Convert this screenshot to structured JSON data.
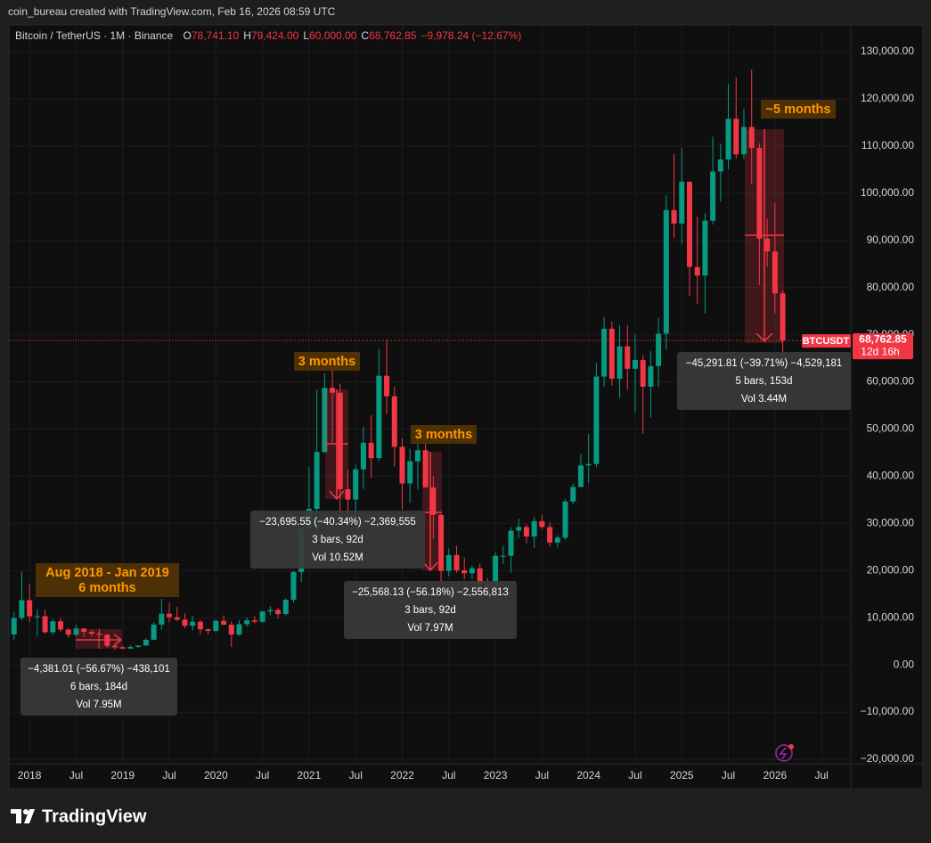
{
  "header": {
    "credit": "coin_bureau created with TradingView.com, Feb 16, 2026 08:59 UTC"
  },
  "footer": {
    "brand": "TradingView"
  },
  "chart_data": {
    "type": "candlestick",
    "symbol": "Bitcoin / TetherUS · 1M · Binance",
    "ohlc_legend": [
      {
        "key": "O",
        "value": "78,741.10"
      },
      {
        "key": "H",
        "value": "79,424.00"
      },
      {
        "key": "L",
        "value": "60,000.00"
      },
      {
        "key": "C",
        "value": "68,762.85"
      }
    ],
    "change": "−9,978.24 (−12.67%)",
    "price_tag": {
      "symbol": "BTCUSDT",
      "price": "68,762.85",
      "countdown": "12d 16h"
    },
    "up_color": "#089981",
    "down_color": "#f23645",
    "grid": true,
    "xlim": [
      "2017-10",
      "2026-11"
    ],
    "ylim": [
      -20945,
      135290
    ],
    "xticks": [
      {
        "value": "2018-01",
        "label": "2018"
      },
      {
        "value": "2018-07",
        "label": "Jul"
      },
      {
        "value": "2019-01",
        "label": "2019"
      },
      {
        "value": "2019-07",
        "label": "Jul"
      },
      {
        "value": "2020-01",
        "label": "2020"
      },
      {
        "value": "2020-07",
        "label": "Jul"
      },
      {
        "value": "2021-01",
        "label": "2021"
      },
      {
        "value": "2021-07",
        "label": "Jul"
      },
      {
        "value": "2022-01",
        "label": "2022"
      },
      {
        "value": "2022-07",
        "label": "Jul"
      },
      {
        "value": "2023-01",
        "label": "2023"
      },
      {
        "value": "2023-07",
        "label": "Jul"
      },
      {
        "value": "2024-01",
        "label": "2024"
      },
      {
        "value": "2024-07",
        "label": "Jul"
      },
      {
        "value": "2025-01",
        "label": "2025"
      },
      {
        "value": "2025-07",
        "label": "Jul"
      },
      {
        "value": "2026-01",
        "label": "2026"
      },
      {
        "value": "2026-07",
        "label": "Jul"
      }
    ],
    "yticks": [
      {
        "value": 130000,
        "label": "130,000.00"
      },
      {
        "value": 120000,
        "label": "120,000.00"
      },
      {
        "value": 110000,
        "label": "110,000.00"
      },
      {
        "value": 100000,
        "label": "100,000.00"
      },
      {
        "value": 90000,
        "label": "90,000.00"
      },
      {
        "value": 80000,
        "label": "80,000.00"
      },
      {
        "value": 70000,
        "label": "70,000.00"
      },
      {
        "value": 60000,
        "label": "60,000.00"
      },
      {
        "value": 50000,
        "label": "50,000.00"
      },
      {
        "value": 40000,
        "label": "40,000.00"
      },
      {
        "value": 30000,
        "label": "30,000.00"
      },
      {
        "value": 20000,
        "label": "20,000.00"
      },
      {
        "value": 10000,
        "label": "10,000.00"
      },
      {
        "value": 0,
        "label": "0.00"
      },
      {
        "value": -10000,
        "label": "−10,000.00"
      },
      {
        "value": -20000,
        "label": "−20,000.00"
      }
    ],
    "x": [
      "2017-11",
      "2017-12",
      "2018-01",
      "2018-02",
      "2018-03",
      "2018-04",
      "2018-05",
      "2018-06",
      "2018-07",
      "2018-08",
      "2018-09",
      "2018-10",
      "2018-11",
      "2018-12",
      "2019-01",
      "2019-02",
      "2019-03",
      "2019-04",
      "2019-05",
      "2019-06",
      "2019-07",
      "2019-08",
      "2019-09",
      "2019-10",
      "2019-11",
      "2019-12",
      "2020-01",
      "2020-02",
      "2020-03",
      "2020-04",
      "2020-05",
      "2020-06",
      "2020-07",
      "2020-08",
      "2020-09",
      "2020-10",
      "2020-11",
      "2020-12",
      "2021-01",
      "2021-02",
      "2021-03",
      "2021-04",
      "2021-05",
      "2021-06",
      "2021-07",
      "2021-08",
      "2021-09",
      "2021-10",
      "2021-11",
      "2021-12",
      "2022-01",
      "2022-02",
      "2022-03",
      "2022-04",
      "2022-05",
      "2022-06",
      "2022-07",
      "2022-08",
      "2022-09",
      "2022-10",
      "2022-11",
      "2022-12",
      "2023-01",
      "2023-02",
      "2023-03",
      "2023-04",
      "2023-05",
      "2023-06",
      "2023-07",
      "2023-08",
      "2023-09",
      "2023-10",
      "2023-11",
      "2023-12",
      "2024-01",
      "2024-02",
      "2024-03",
      "2024-04",
      "2024-05",
      "2024-06",
      "2024-07",
      "2024-08",
      "2024-09",
      "2024-10",
      "2024-11",
      "2024-12",
      "2025-01",
      "2025-02",
      "2025-03",
      "2025-04",
      "2025-05",
      "2025-06",
      "2025-07",
      "2025-08",
      "2025-09",
      "2025-10",
      "2025-11",
      "2025-12",
      "2026-01",
      "2026-02"
    ],
    "open": [
      6463,
      9947,
      13716,
      10285,
      10326,
      6922,
      9246,
      7494,
      6391,
      7730,
      7011,
      6626,
      6371,
      4041,
      3742,
      3458,
      3813,
      4103,
      5320,
      8555,
      10854,
      10085,
      9588,
      8289,
      9140,
      7541,
      7195,
      9352,
      8523,
      6410,
      8620,
      9448,
      9138,
      11335,
      11649,
      10776,
      13791,
      19695,
      28923,
      33092,
      45135,
      58740,
      57694,
      37253,
      35045,
      41462,
      47100,
      43824,
      61300,
      56950,
      46216,
      38466,
      43160,
      45510,
      37630,
      31801,
      19942,
      23293,
      20050,
      19423,
      20490,
      17164,
      16542,
      23125,
      23141,
      28465,
      29233,
      27210,
      30472,
      29232,
      25940,
      26962,
      34639,
      37724,
      42283,
      42580,
      61130,
      71280,
      60672,
      67540,
      62772,
      64628,
      58974,
      63327,
      70215,
      96408,
      93576,
      102429,
      84350,
      82550,
      94172,
      104591,
      107135,
      115764,
      108246,
      114048,
      109608,
      90360,
      87650,
      78741.1
    ],
    "high": [
      11300,
      19798,
      17176,
      11786,
      11700,
      9759,
      9990,
      7760,
      8507,
      7750,
      7410,
      7680,
      6600,
      4312,
      4143,
      4210,
      4140,
      5600,
      9074,
      13970,
      13129,
      12325,
      10905,
      10370,
      9505,
      7750,
      9578,
      10500,
      9188,
      9460,
      10068,
      10380,
      11444,
      12468,
      12050,
      14100,
      19863,
      29300,
      41950,
      58352,
      61844,
      64854,
      59600,
      41330,
      42448,
      50500,
      52920,
      67000,
      69000,
      59053,
      47990,
      45821,
      48189,
      47444,
      40023,
      31986,
      24668,
      25211,
      22799,
      21085,
      21480,
      18387,
      23960,
      25250,
      29184,
      31000,
      29820,
      31431,
      31804,
      30244,
      27483,
      35198,
      38450,
      44700,
      48969,
      64000,
      73777,
      72797,
      71979,
      71998,
      70079,
      65660,
      66498,
      73620,
      99588,
      108353,
      109588,
      102500,
      95000,
      95758,
      111980,
      110530,
      123218,
      124474,
      117900,
      126200,
      110600,
      94600,
      97900,
      79424
    ],
    "low": [
      5325,
      9400,
      9035,
      6000,
      6600,
      6430,
      7032,
      5750,
      6070,
      5880,
      6100,
      6180,
      3652,
      3156,
      3349,
      3373,
      3670,
      4067,
      5320,
      7444,
      9010,
      9320,
      7710,
      7300,
      6515,
      6435,
      6871,
      8445,
      3782,
      6150,
      8117,
      8833,
      8893,
      10518,
      9825,
      10375,
      13195,
      17572,
      28130,
      32296,
      44950,
      47044,
      30000,
      28805,
      29278,
      37332,
      39600,
      43283,
      53256,
      42000,
      32917,
      34322,
      37155,
      37578,
      26700,
      17622,
      18782,
      19520,
      18125,
      18190,
      15476,
      16256,
      16499,
      21351,
      19549,
      26942,
      25811,
      24800,
      28861,
      25166,
      24901,
      26538,
      34097,
      37629,
      38555,
      41884,
      59005,
      59191,
      56552,
      58402,
      53485,
      49000,
      52550,
      58946,
      66835,
      90500,
      89256,
      78258,
      76606,
      74508,
      93377,
      98200,
      105100,
      107350,
      107255,
      102000,
      80600,
      84400,
      74500,
      60000
    ],
    "close": [
      9947,
      13716,
      10285,
      10327,
      6923,
      9246,
      7494,
      6391,
      7730,
      7011,
      6626,
      6371,
      4041,
      3742,
      3458,
      3813,
      4103,
      5320,
      8555,
      10854,
      10085,
      9588,
      8289,
      9140,
      7541,
      7195,
      9352,
      8523,
      6410,
      8620,
      9448,
      9138,
      11335,
      11649,
      10776,
      13791,
      19695,
      28923,
      33092,
      45135,
      58740,
      57694,
      37253,
      35045,
      41462,
      47100,
      43824,
      61300,
      56950,
      46216,
      38466,
      43160,
      45510,
      37630,
      31801,
      19942,
      23293,
      20050,
      19423,
      20490,
      17164,
      16542,
      23125,
      23141,
      28465,
      29233,
      27210,
      30472,
      29232,
      25940,
      26962,
      34639,
      37724,
      42283,
      42580,
      61130,
      71280,
      60672,
      67540,
      62772,
      64628,
      58974,
      63327,
      70215,
      96408,
      93576,
      102429,
      84350,
      82550,
      94172,
      104591,
      107135,
      115764,
      108246,
      114048,
      109608,
      90360,
      87650,
      78741.1,
      68762.85
    ],
    "measures": [
      {
        "lines": [
          "−4,381.01 (−56.67%) −438,101",
          "6 bars, 184d",
          "Vol 7.95M"
        ]
      },
      {
        "lines": [
          "−23,695.55 (−40.34%) −2,369,555",
          "3 bars, 92d",
          "Vol 10.52M"
        ]
      },
      {
        "lines": [
          "−25,568.13 (−56.18%) −2,556,813",
          "3 bars, 92d",
          "Vol 7.97M"
        ]
      },
      {
        "lines": [
          "−45,291.81 (−39.71%) −4,529,181",
          "5 bars, 153d",
          "Vol 3.44M"
        ]
      }
    ],
    "annotations": [
      {
        "lines": [
          "3 months"
        ]
      },
      {
        "lines": [
          "3 months"
        ]
      },
      {
        "lines": [
          "~5 months"
        ]
      },
      {
        "lines": [
          "Aug 2018 - Jan 2019",
          "6 months"
        ]
      }
    ]
  }
}
